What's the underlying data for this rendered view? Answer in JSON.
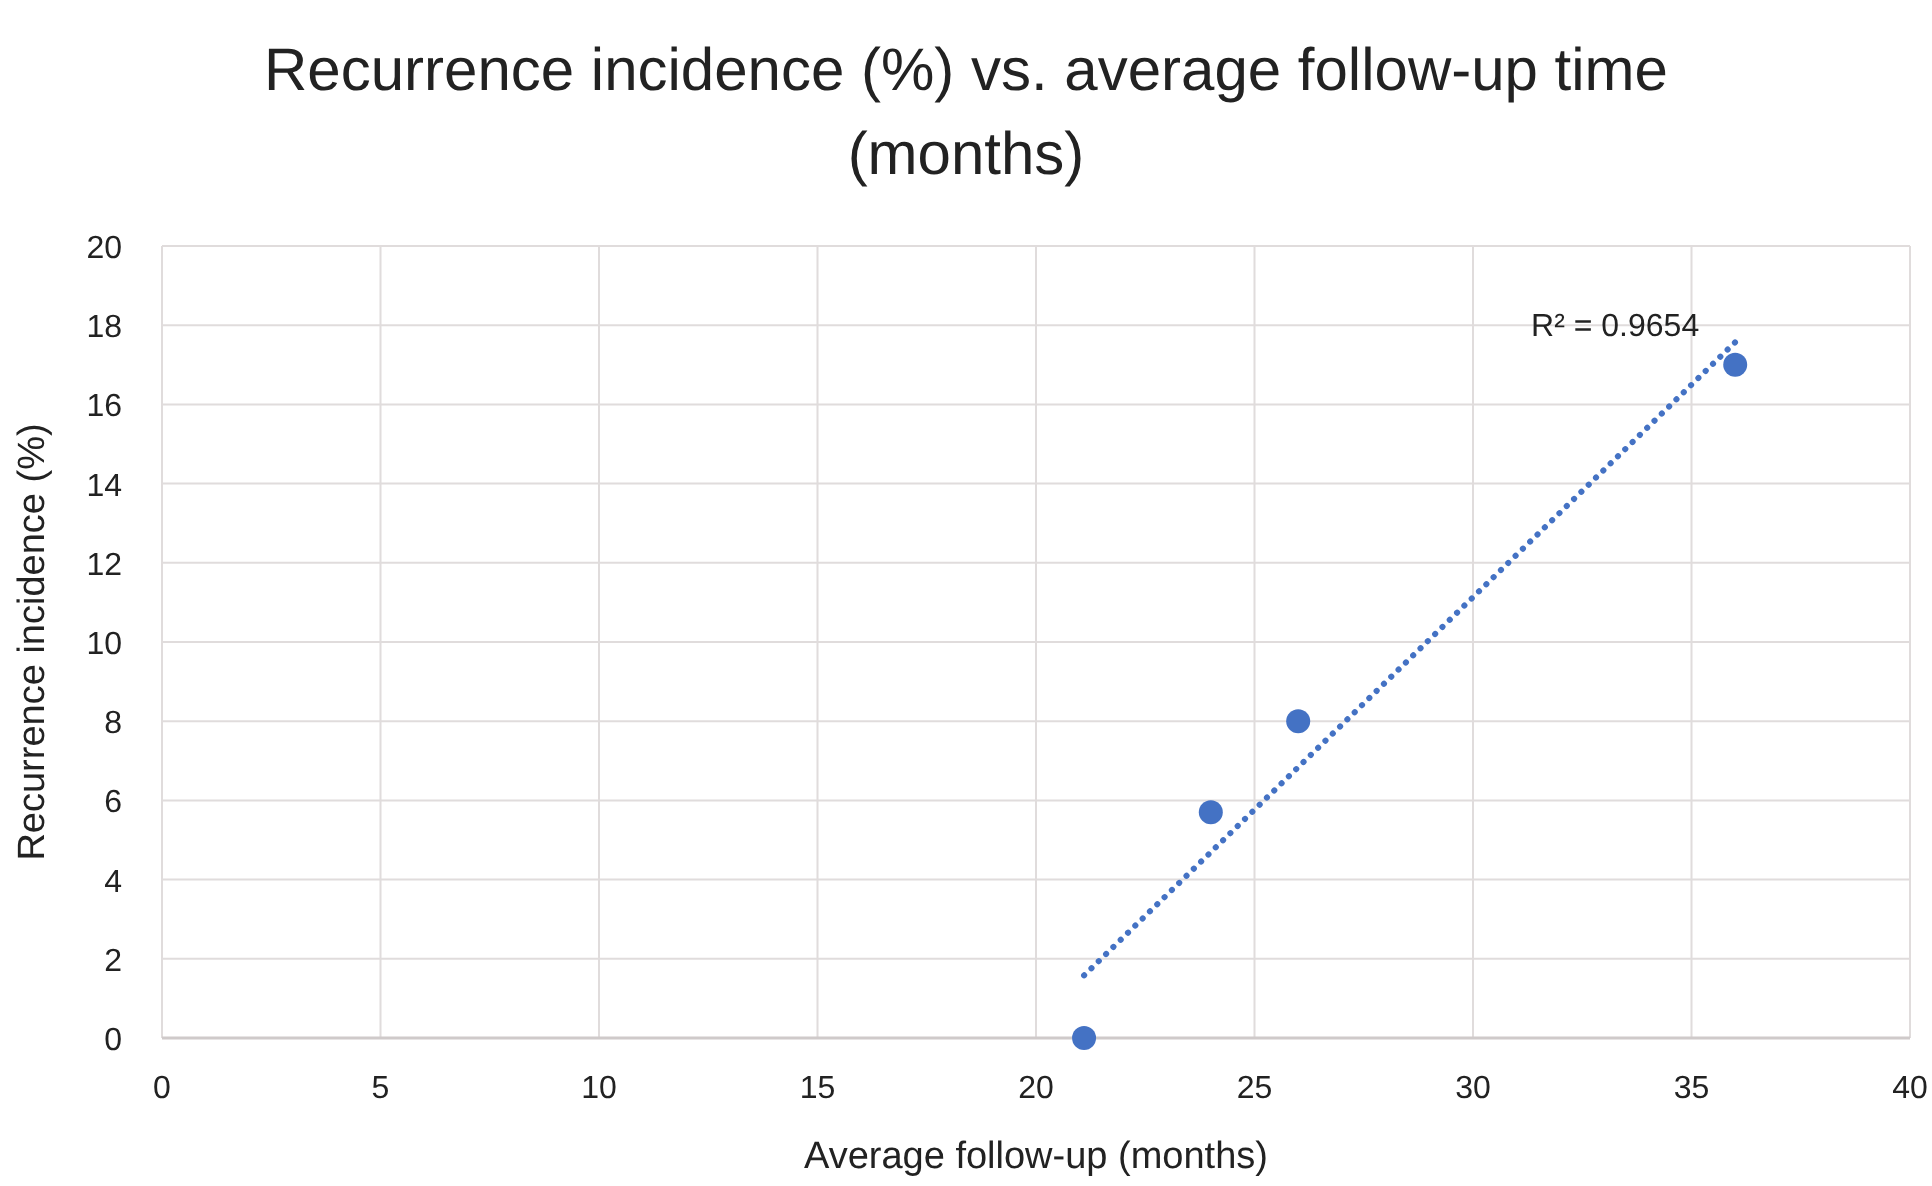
{
  "chart_data": {
    "type": "scatter",
    "title": "Recurrence incidence (%) vs. average follow-up time (months)",
    "xlabel": "Average follow-up (months)",
    "ylabel": "Recurrence incidence (%)",
    "series": [
      {
        "color": "#4472c4",
        "x": [
          21.1,
          24,
          26,
          36
        ],
        "values": [
          0,
          5.7,
          8,
          17
        ],
        "marker": "circle"
      },
      {
        "type": "line",
        "color": "#4472c4",
        "x": [
          21.1,
          36
        ],
        "values": [
          1.58,
          17.57
        ],
        "line_style": "dotted"
      }
    ],
    "annotations": [
      {
        "text": "R² = 0.9654",
        "x": 36,
        "y": 17.57
      }
    ],
    "xlim": [
      0,
      40
    ],
    "xticks": [
      0,
      5,
      10,
      15,
      20,
      25,
      30,
      35,
      40
    ],
    "ylim": [
      0,
      20
    ],
    "yticks": [
      0,
      2,
      4,
      6,
      8,
      10,
      12,
      14,
      16,
      18,
      20
    ],
    "grid": true
  }
}
